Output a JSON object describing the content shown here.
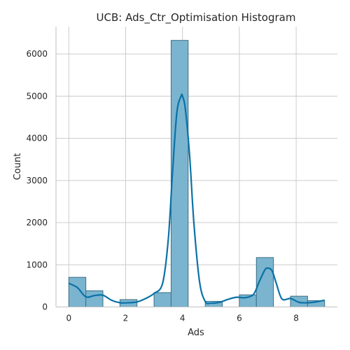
{
  "chart_data": {
    "type": "bar",
    "title": "UCB: Ads_Ctr_Optimisation Histogram",
    "xlabel": "Ads",
    "ylabel": "Count",
    "xlim": [
      -0.45,
      9.45
    ],
    "ylim": [
      0,
      6650
    ],
    "grid": true,
    "bin_width": 0.6,
    "bins": [
      {
        "start": 0.0,
        "end": 0.6,
        "count": 703
      },
      {
        "start": 0.6,
        "end": 1.2,
        "count": 384
      },
      {
        "start": 1.2,
        "end": 1.8,
        "count": 0
      },
      {
        "start": 1.8,
        "end": 2.4,
        "count": 175
      },
      {
        "start": 2.4,
        "end": 3.0,
        "count": 0
      },
      {
        "start": 3.0,
        "end": 3.6,
        "count": 340
      },
      {
        "start": 3.6,
        "end": 4.2,
        "count": 6323
      },
      {
        "start": 4.2,
        "end": 4.8,
        "count": 0
      },
      {
        "start": 4.8,
        "end": 5.4,
        "count": 134
      },
      {
        "start": 5.4,
        "end": 6.0,
        "count": 0
      },
      {
        "start": 6.0,
        "end": 6.6,
        "count": 287
      },
      {
        "start": 6.6,
        "end": 7.2,
        "count": 1172
      },
      {
        "start": 7.2,
        "end": 7.8,
        "count": 0
      },
      {
        "start": 7.8,
        "end": 8.4,
        "count": 255
      },
      {
        "start": 8.4,
        "end": 9.0,
        "count": 150
      }
    ],
    "kde": {
      "x": [
        0,
        0.3,
        0.6,
        0.9,
        1.2,
        1.5,
        1.8,
        2.1,
        2.4,
        2.7,
        3.0,
        3.3,
        3.5,
        3.65,
        3.8,
        3.95,
        4.0,
        4.1,
        4.25,
        4.4,
        4.6,
        4.8,
        5.0,
        5.3,
        5.6,
        5.9,
        6.2,
        6.5,
        6.7,
        6.9,
        7.0,
        7.15,
        7.3,
        7.5,
        7.8,
        8.1,
        8.4,
        8.7,
        9.0
      ],
      "y": [
        560,
        460,
        240,
        270,
        280,
        160,
        100,
        100,
        120,
        200,
        320,
        560,
        1600,
        3200,
        4600,
        5000,
        5000,
        4700,
        3600,
        2000,
        600,
        130,
        90,
        110,
        180,
        230,
        220,
        300,
        600,
        880,
        920,
        860,
        560,
        190,
        200,
        110,
        100,
        120,
        160
      ]
    },
    "x_ticks": [
      0,
      2,
      4,
      6,
      8
    ],
    "y_ticks": [
      0,
      1000,
      2000,
      3000,
      4000,
      5000,
      6000
    ],
    "x_tick_labels": [
      "0",
      "2",
      "4",
      "6",
      "8"
    ],
    "y_tick_labels": [
      "0",
      "1000",
      "2000",
      "3000",
      "4000",
      "5000",
      "6000"
    ],
    "colors": {
      "bar_fill": "#7ab4cf",
      "bar_edge": "#3d6f86",
      "kde_line": "#0a72a6",
      "grid": "#cccccc"
    }
  }
}
